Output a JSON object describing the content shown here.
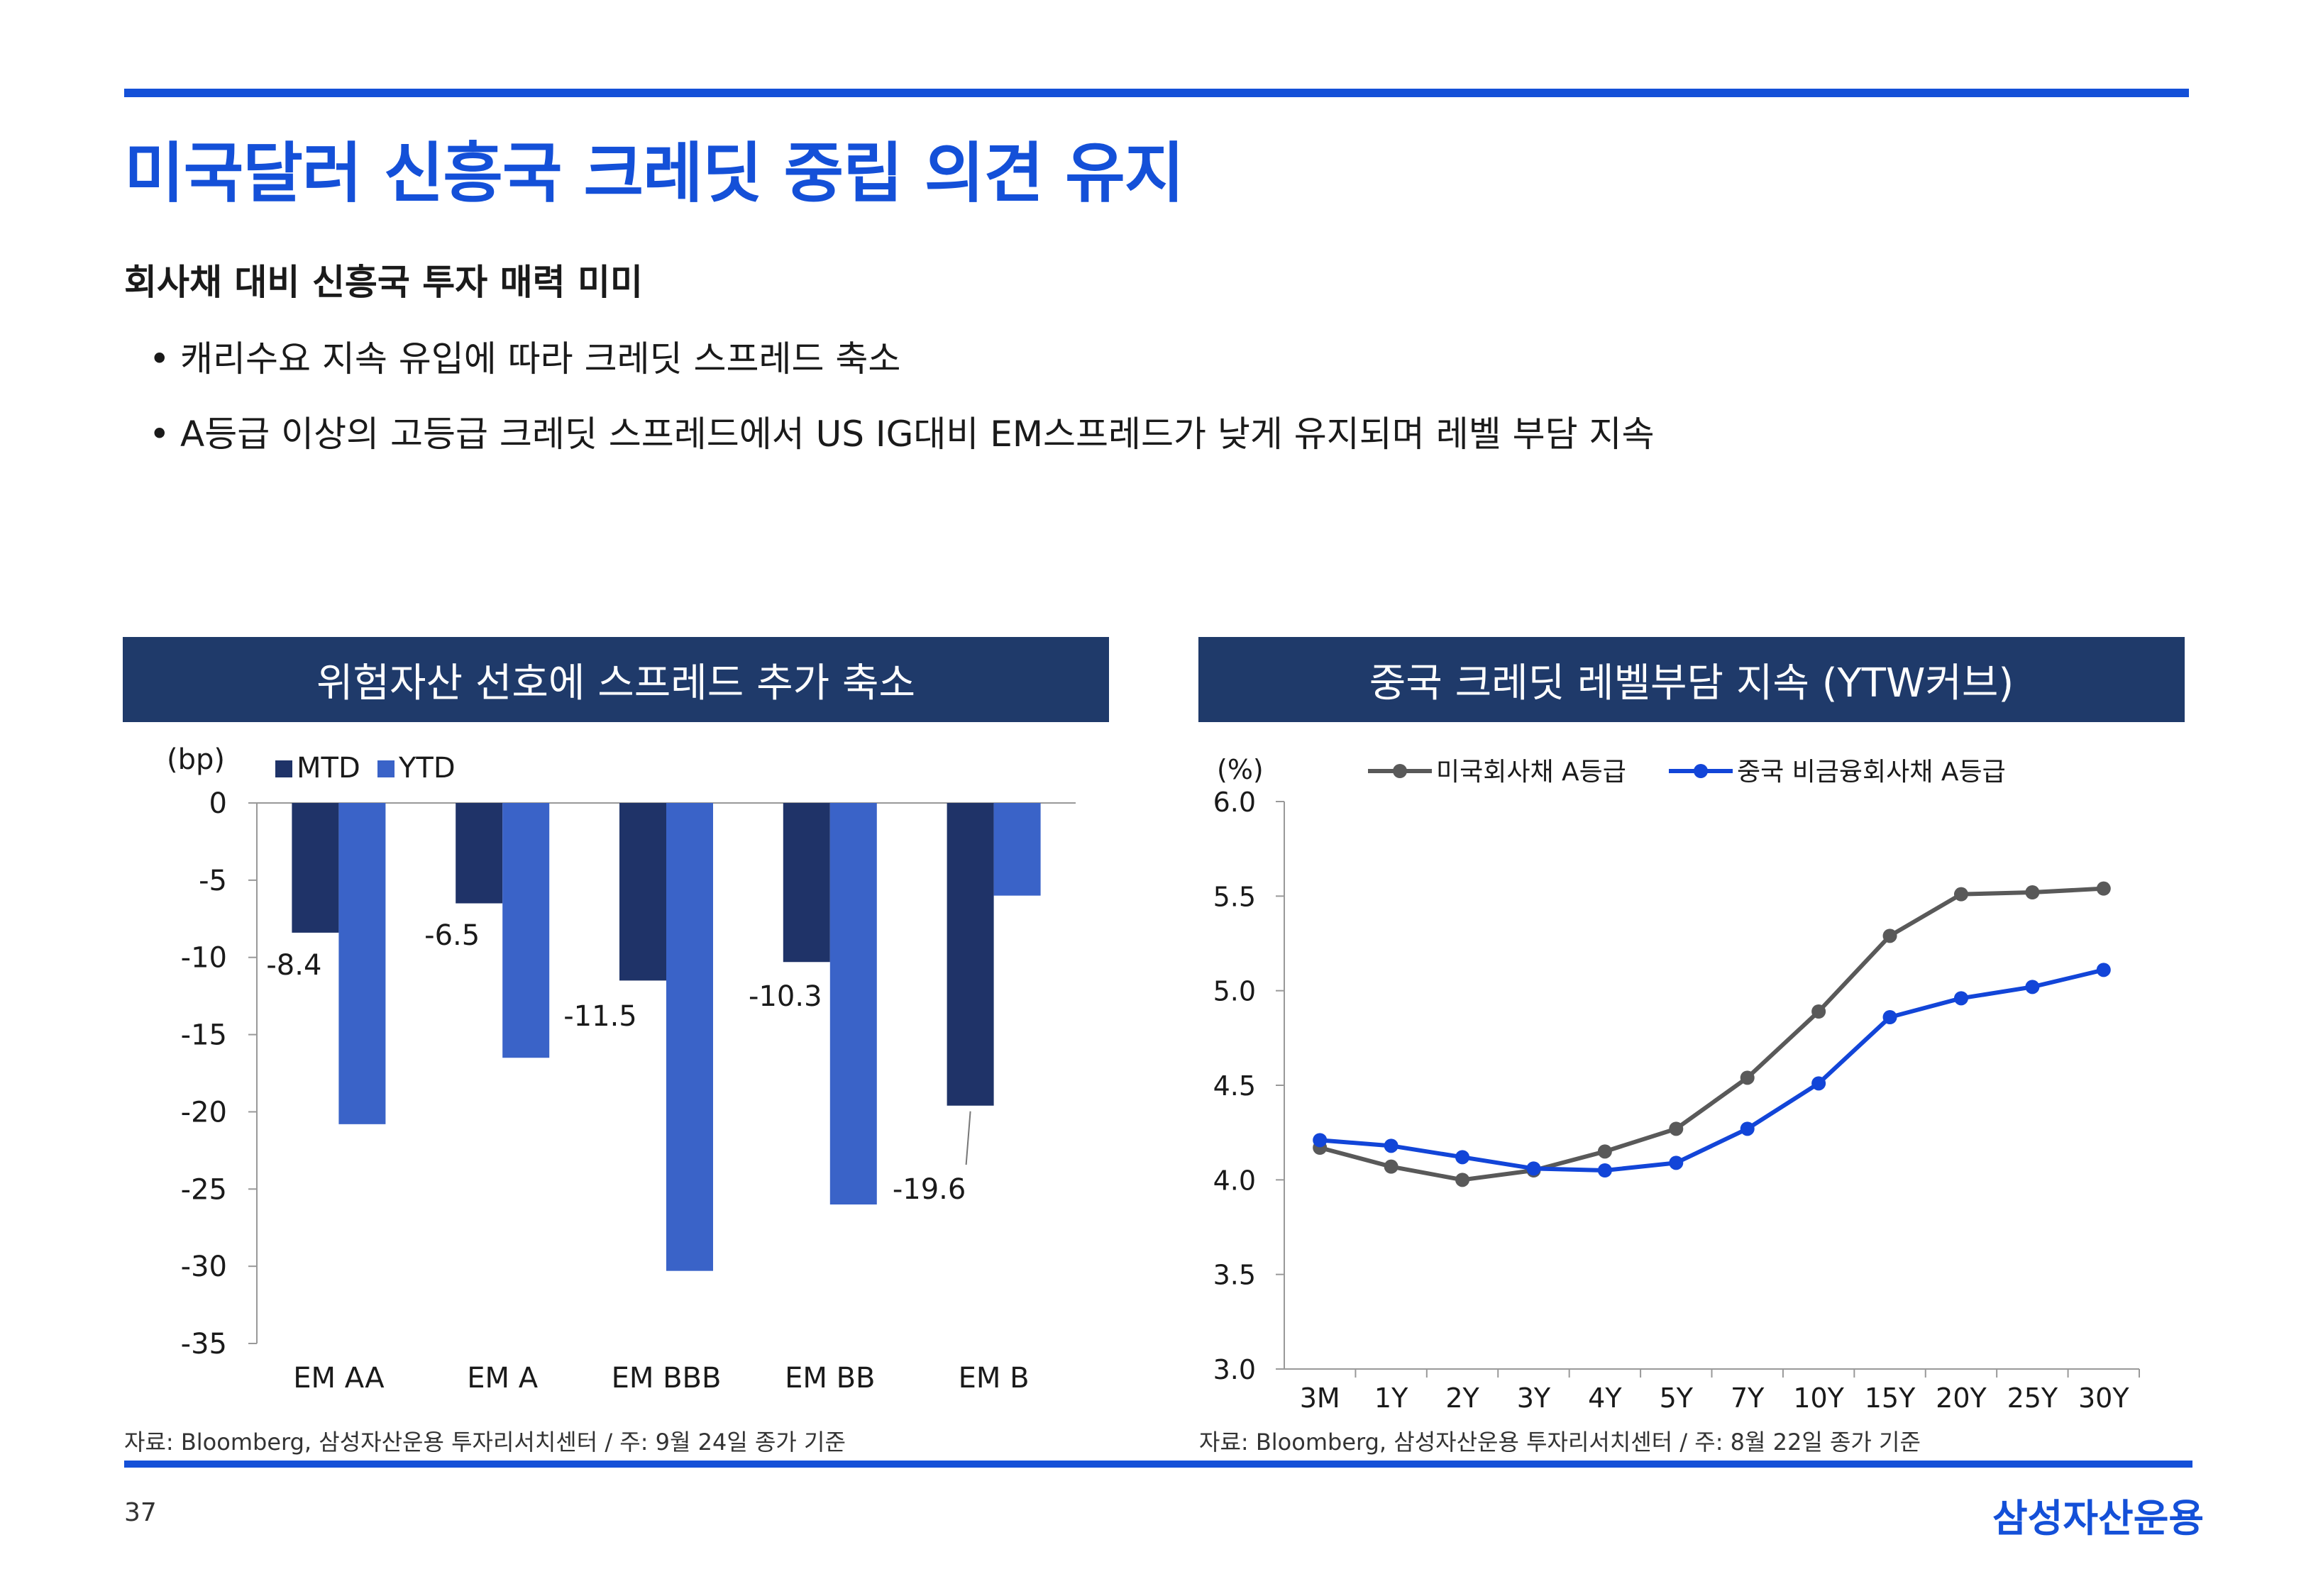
{
  "page": {
    "title": "미국달러 신흥국 크레딧 중립 의견 유지",
    "subtitle": "회사채 대비 신흥국 투자 매력 미미",
    "bullets": [
      "캐리수요 지속 유입에 따라 크레딧 스프레드 축소",
      "A등급 이상의 고등급 크레딧 스프레드에서 US IG대비 EM스프레드가 낮게 유지되며 레벨 부담 지속"
    ],
    "bullet_symbol": "•",
    "page_number": "37",
    "brand": "삼성자산운용"
  },
  "panels": {
    "left": {
      "header": "위험자산 선호에 스프레드 추가 축소",
      "source": "자료: Bloomberg, 삼성자산운용 투자리서치센터 / 주: 9월 24일 종가 기준"
    },
    "right": {
      "header": "중국 크레딧 레벨부담 지속 (YTW커브)",
      "source": "자료: Bloomberg, 삼성자산운용 투자리서치센터 / 주: 8월 22일 종가 기준"
    }
  },
  "chart_data": [
    {
      "type": "bar",
      "title": "위험자산 선호에 스프레드 추가 축소",
      "ylabel": "(bp)",
      "categories": [
        "EM AA",
        "EM A",
        "EM BBB",
        "EM BB",
        "EM B"
      ],
      "ylim": [
        -35,
        0
      ],
      "yticks": [
        0,
        -5,
        -10,
        -15,
        -20,
        -25,
        -30,
        -35
      ],
      "ytick_labels": [
        "0",
        "-5",
        "-10",
        "-15",
        "-20",
        "-25",
        "-30",
        "-35"
      ],
      "series": [
        {
          "name": "MTD",
          "color": "#1f3368",
          "values": [
            -8.4,
            -6.5,
            -11.5,
            -10.3,
            -19.6
          ]
        },
        {
          "name": "YTD",
          "color": "#3a63c8",
          "values": [
            -20.8,
            -16.5,
            -30.3,
            -26.0,
            -6.0
          ]
        }
      ],
      "data_labels": [
        "-8.4",
        "-6.5",
        "-11.5",
        "-10.3",
        "-19.6"
      ],
      "legend": "top-left"
    },
    {
      "type": "line",
      "title": "중국 크레딧 레벨부담 지속 (YTW커브)",
      "ylabel": "(%)",
      "categories": [
        "3M",
        "1Y",
        "2Y",
        "3Y",
        "4Y",
        "5Y",
        "7Y",
        "10Y",
        "15Y",
        "20Y",
        "25Y",
        "30Y"
      ],
      "ylim": [
        3.0,
        6.0
      ],
      "yticks": [
        3.0,
        3.5,
        4.0,
        4.5,
        5.0,
        5.5,
        6.0
      ],
      "ytick_labels": [
        "3.0",
        "3.5",
        "4.0",
        "4.5",
        "5.0",
        "5.5",
        "6.0"
      ],
      "series": [
        {
          "name": "미국회사채 A등급",
          "color": "#595959",
          "values": [
            4.17,
            4.07,
            4.0,
            4.05,
            4.15,
            4.27,
            4.54,
            4.89,
            5.29,
            5.51,
            5.52,
            5.54
          ]
        },
        {
          "name": "중국 비금융회사채 A등급",
          "color": "#1245d8",
          "values": [
            4.21,
            4.18,
            4.12,
            4.06,
            4.05,
            4.09,
            4.27,
            4.51,
            4.86,
            4.96,
            5.02,
            5.11
          ]
        }
      ],
      "legend": "top"
    }
  ]
}
